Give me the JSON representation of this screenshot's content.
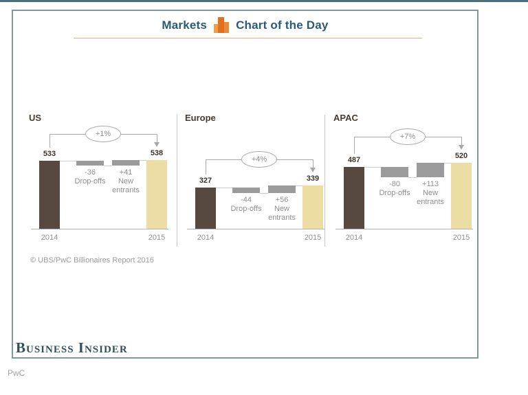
{
  "page": {
    "top_rule_color": "#48707d",
    "frame_border_color": "#7e98a2",
    "background": "#ffffff"
  },
  "header": {
    "markets_label": "Markets",
    "title_label": "Chart of the Day",
    "text_color": "#2a5a78",
    "underline_color": "#edaa80",
    "icon": "bar-chart-icon",
    "icon_colors": [
      "#f09d4f",
      "#e2711d",
      "#ed8a35"
    ]
  },
  "chart_data": [
    {
      "type": "waterfall",
      "region_label": "US",
      "pct_change": "+1%",
      "categories": [
        "2014",
        "Drop-offs",
        "New entrants",
        "2015"
      ],
      "start": {
        "year": "2014",
        "value": 533,
        "label": "533"
      },
      "steps": [
        {
          "value": -36,
          "label": "-36",
          "name": "Drop-offs"
        },
        {
          "value": 41,
          "label": "+41",
          "name": "New entrants"
        }
      ],
      "end": {
        "year": "2015",
        "value": 538,
        "label": "538"
      }
    },
    {
      "type": "waterfall",
      "region_label": "Europe",
      "pct_change": "+4%",
      "categories": [
        "2014",
        "Drop-offs",
        "New entrants",
        "2015"
      ],
      "start": {
        "year": "2014",
        "value": 327,
        "label": "327"
      },
      "steps": [
        {
          "value": -44,
          "label": "-44",
          "name": "Drop-offs"
        },
        {
          "value": 56,
          "label": "+56",
          "name": "New entrants"
        }
      ],
      "end": {
        "year": "2015",
        "value": 339,
        "label": "339"
      }
    },
    {
      "type": "waterfall",
      "region_label": "APAC",
      "pct_change": "+7%",
      "categories": [
        "2014",
        "Drop-offs",
        "New entrants",
        "2015"
      ],
      "start": {
        "year": "2014",
        "value": 487,
        "label": "487"
      },
      "steps": [
        {
          "value": -80,
          "label": "-80",
          "name": "Drop-offs"
        },
        {
          "value": 113,
          "label": "+113",
          "name": "New entrants"
        }
      ],
      "end": {
        "year": "2015",
        "value": 520,
        "label": "520"
      }
    }
  ],
  "colors": {
    "start_bar": "#57493f",
    "end_bar": "#ecdda4",
    "step_bar": "#9b9b9b",
    "connector": "#cccccc",
    "axis": "#b3b3b3",
    "value_label": "#3a332c",
    "muted_label": "#8e8e8e",
    "bracket": "#a8a8a8",
    "divider": "#c6c6c6"
  },
  "footer": {
    "source_label": "© UBS/PwC Billionaires Report 2016",
    "publisher_label": "Business Insider",
    "pwc_label": "PwC"
  }
}
